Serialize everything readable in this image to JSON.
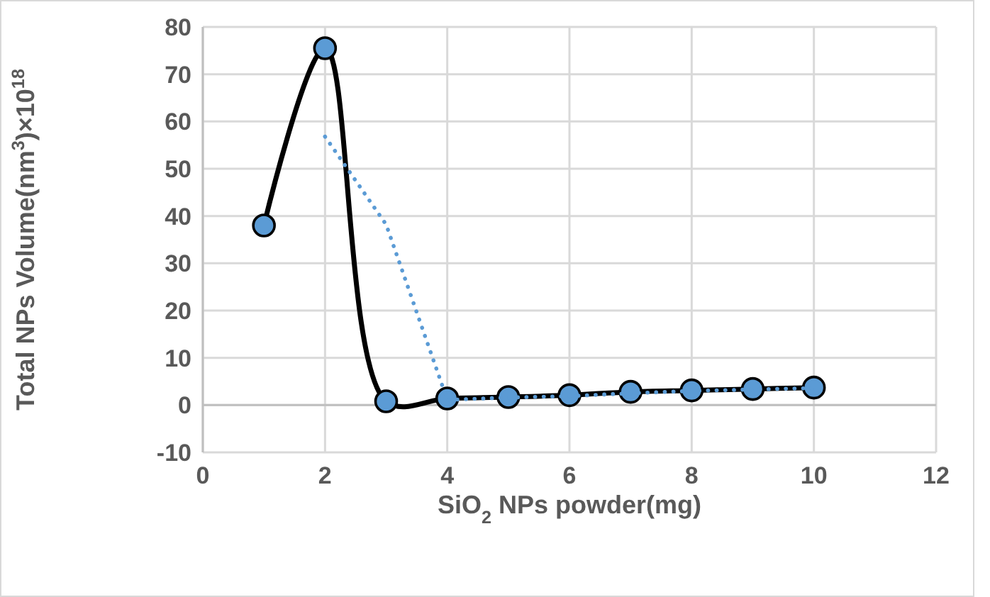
{
  "chart_data": {
    "type": "line",
    "xlabel": "SiO$_{2}$ NPs powder(mg)",
    "ylabel": "Total NPs Volume(nm$^{3}$)×10$^{18}$",
    "x": [
      1,
      2,
      3,
      4,
      5,
      6,
      7,
      8,
      9,
      10
    ],
    "series": [
      {
        "color": "#000000",
        "marker": "circle",
        "line_style": "solid",
        "values": [
          38,
          75.5,
          0.8,
          1.4,
          1.7,
          2.1,
          2.8,
          3.1,
          3.4,
          3.7
        ]
      },
      {
        "type": "line",
        "color": "#5b9bd5",
        "marker": "none",
        "line_style": "dotted",
        "x": [
          2,
          3,
          4,
          5,
          6,
          7,
          8,
          9,
          10
        ],
        "values": [
          56.8,
          38.2,
          1.1,
          1.6,
          1.9,
          2.5,
          3,
          3.3,
          3.6
        ]
      }
    ],
    "xlim": [
      0,
      12
    ],
    "xticks": [
      0,
      2,
      4,
      6,
      8,
      10,
      12
    ],
    "ylim": [
      -10,
      80
    ],
    "yticks": [
      -10,
      0,
      10,
      20,
      30,
      40,
      50,
      60,
      70,
      80
    ],
    "grid": true
  }
}
